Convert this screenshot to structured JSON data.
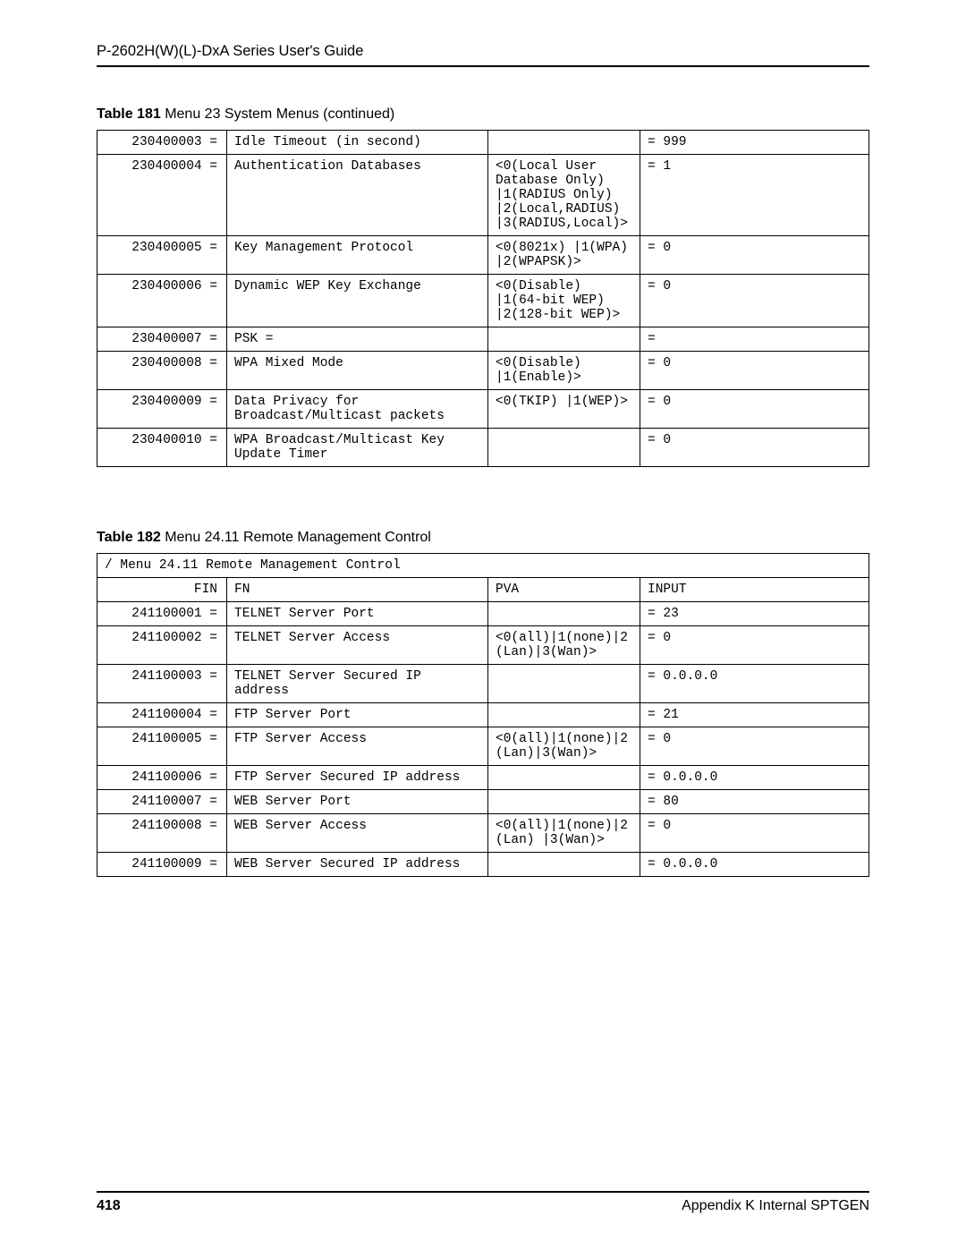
{
  "header": {
    "title": "P-2602H(W)(L)-DxA Series User's Guide"
  },
  "table181": {
    "caption_label": "Table 181",
    "caption_text": "   Menu 23 System Menus  (continued)",
    "columns": [
      "c1",
      "c2",
      "c3",
      "c4"
    ],
    "rows": [
      [
        "230400003 =",
        "Idle Timeout (in second)",
        "",
        "= 999"
      ],
      [
        "230400004 =",
        "Authentication Databases",
        "<0(Local User Database Only) |1(RADIUS Only) |2(Local,RADIUS) |3(RADIUS,Local)>",
        "= 1"
      ],
      [
        "230400005 =",
        "Key Management Protocol",
        "<0(8021x) |1(WPA) |2(WPAPSK)>",
        "= 0"
      ],
      [
        "230400006 =",
        "Dynamic WEP Key Exchange",
        "<0(Disable) |1(64-bit WEP) |2(128-bit WEP)>",
        "= 0"
      ],
      [
        "230400007 =",
        "PSK  =",
        "",
        "="
      ],
      [
        "230400008 =",
        "WPA Mixed Mode",
        "<0(Disable) |1(Enable)>",
        "= 0"
      ],
      [
        "230400009 =",
        "Data Privacy for Broadcast/Multicast packets",
        "<0(TKIP) |1(WEP)>",
        "= 0"
      ],
      [
        "230400010 =",
        "WPA Broadcast/Multicast Key Update Timer",
        "",
        "= 0"
      ]
    ]
  },
  "table182": {
    "caption_label": "Table 182",
    "caption_text": "   Menu 24.11 Remote Management Control",
    "header_row": [
      "/ Menu 24.11 Remote Management Control"
    ],
    "columns": [
      "c1",
      "c2",
      "c3",
      "c4"
    ],
    "rows": [
      [
        "FIN",
        "FN",
        "PVA",
        "INPUT"
      ],
      [
        "241100001 =",
        "TELNET Server Port",
        "",
        "= 23"
      ],
      [
        "241100002 =",
        "TELNET Server Access",
        "<0(all)|1(none)|2(Lan)|3(Wan)>",
        "= 0"
      ],
      [
        "241100003 =",
        "TELNET Server Secured IP address",
        "",
        "= 0.0.0.0"
      ],
      [
        "241100004 =",
        "FTP Server Port",
        "",
        "= 21"
      ],
      [
        "241100005 =",
        "FTP Server Access",
        "<0(all)|1(none)|2(Lan)|3(Wan)>",
        "= 0"
      ],
      [
        "241100006 =",
        "FTP Server Secured IP address",
        "",
        "= 0.0.0.0"
      ],
      [
        "241100007 =",
        "WEB Server Port",
        "",
        "= 80"
      ],
      [
        "241100008 =",
        "WEB Server Access",
        "<0(all)|1(none)|2(Lan) |3(Wan)>",
        "= 0"
      ],
      [
        "241100009 =",
        "WEB Server Secured IP address",
        "",
        "= 0.0.0.0"
      ]
    ]
  },
  "footer": {
    "page_number": "418",
    "section": "Appendix K Internal SPTGEN"
  }
}
